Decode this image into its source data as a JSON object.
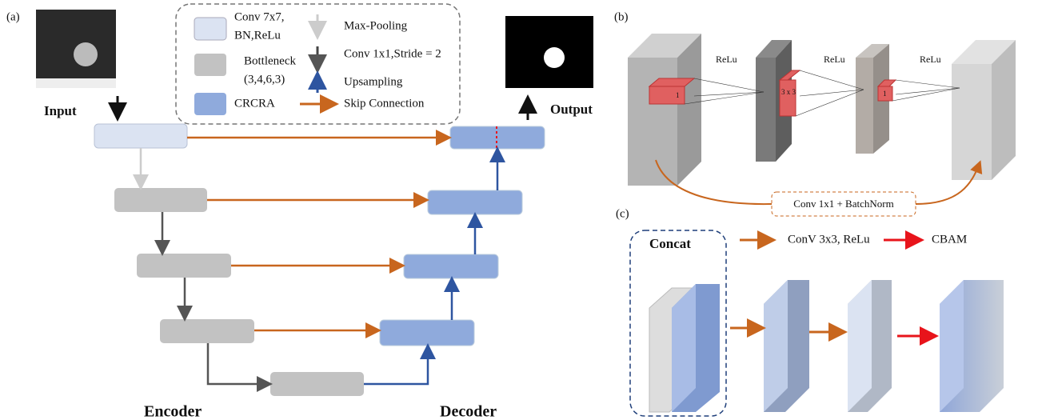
{
  "panel_a": {
    "label": "(a)",
    "legend": {
      "conv_line1": "Conv 7x7,",
      "conv_line2": "BN,ReLu",
      "bottleneck_line1": "Bottleneck",
      "bottleneck_line2": "(3,4,6,3)",
      "crcra": "CRCRA",
      "max_pooling": "Max-Pooling",
      "conv_stride": "Conv 1x1,Stride = 2",
      "upsampling": "Upsampling",
      "skip": "Skip Connection"
    },
    "input": "Input",
    "output": "Output",
    "encoder": "Encoder",
    "decoder": "Decoder"
  },
  "panel_b": {
    "label": "(b)",
    "activations": [
      "ReLu",
      "ReLu",
      "ReLu"
    ],
    "kernels": [
      "1",
      "3 x 3",
      "1"
    ],
    "shortcut": "Conv 1x1 + BatchNorm"
  },
  "panel_c": {
    "label": "(c)",
    "concat": "Concat",
    "legend": [
      "ConV 3x3, ReLu",
      "CBAM"
    ]
  }
}
